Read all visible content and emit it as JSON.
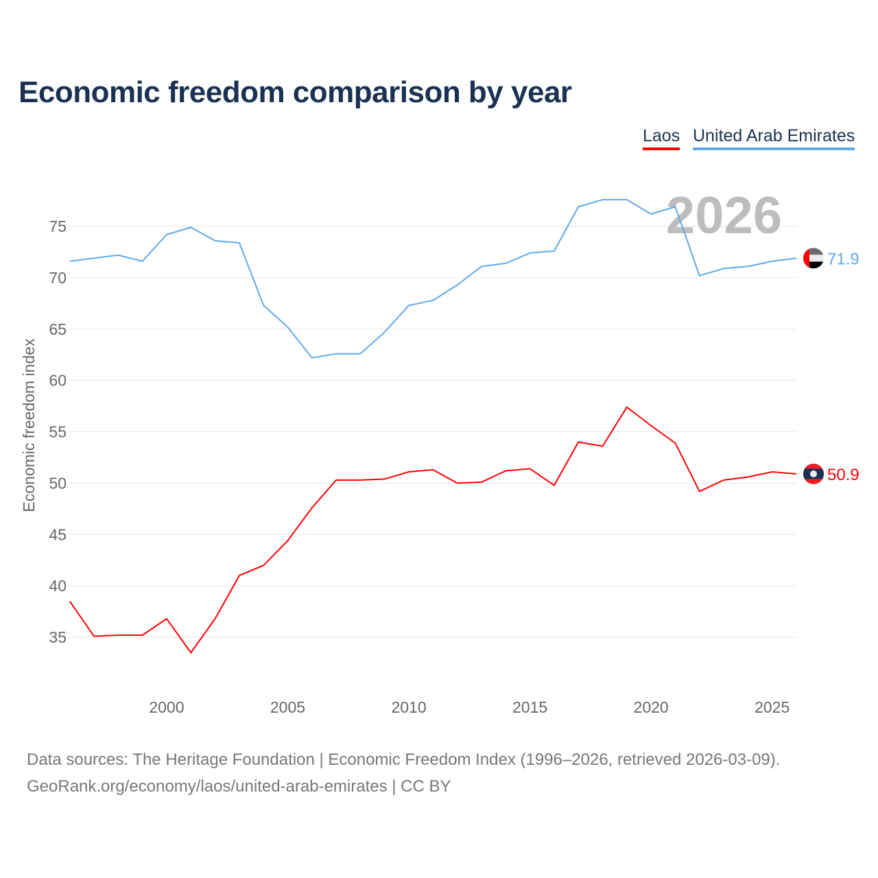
{
  "chart_data": {
    "type": "line",
    "title": "Economic freedom comparison by year",
    "ylabel": "Economic freedom index",
    "xlabel": "",
    "xlim": [
      1996,
      2026
    ],
    "ylim": [
      30,
      80
    ],
    "x_ticks": [
      2000,
      2005,
      2010,
      2015,
      2020,
      2025
    ],
    "y_ticks": [
      35,
      40,
      45,
      50,
      55,
      60,
      65,
      70,
      75
    ],
    "grid": true,
    "legend_position": "top-right",
    "year_watermark": "2026",
    "x": [
      1996,
      1997,
      1998,
      1999,
      2000,
      2001,
      2002,
      2003,
      2004,
      2005,
      2006,
      2007,
      2008,
      2009,
      2010,
      2011,
      2012,
      2013,
      2014,
      2015,
      2016,
      2017,
      2018,
      2019,
      2020,
      2021,
      2022,
      2023,
      2024,
      2025,
      2026
    ],
    "series": [
      {
        "name": "Laos",
        "color": "#ff0000",
        "end_label": "50.9",
        "values": [
          38.5,
          35.1,
          35.2,
          35.2,
          36.8,
          33.5,
          36.8,
          41.0,
          42.0,
          44.4,
          47.6,
          50.3,
          50.3,
          50.4,
          51.1,
          51.3,
          50.0,
          50.1,
          51.2,
          51.4,
          49.8,
          54.0,
          53.6,
          57.4,
          55.6,
          53.9,
          49.2,
          50.3,
          50.6,
          51.1,
          50.9
        ]
      },
      {
        "name": "United Arab Emirates",
        "color": "#5fa8e8",
        "end_label": "71.9",
        "values": [
          71.6,
          71.9,
          72.2,
          71.6,
          74.2,
          74.9,
          73.6,
          73.4,
          67.3,
          65.2,
          62.2,
          62.6,
          62.6,
          64.7,
          67.3,
          67.8,
          69.3,
          71.1,
          71.4,
          72.4,
          72.6,
          76.9,
          77.6,
          77.6,
          76.2,
          76.9,
          70.2,
          70.9,
          71.1,
          71.6,
          71.9
        ]
      }
    ]
  },
  "footer": {
    "line1": "Data sources: The Heritage Foundation | Economic Freedom Index (1996–2026, retrieved 2026-03-09).",
    "line2": "GeoRank.org/economy/laos/united-arab-emirates | CC BY"
  }
}
